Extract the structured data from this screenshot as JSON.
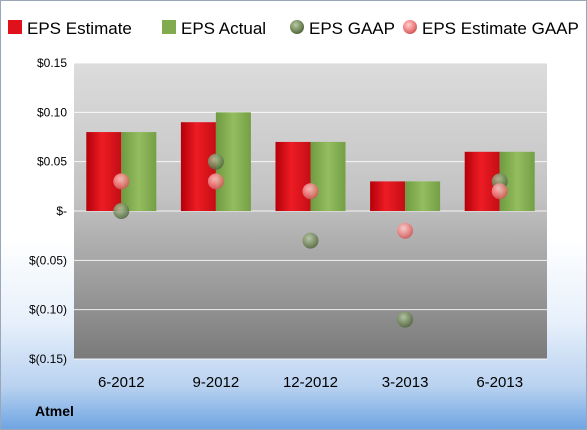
{
  "company": "Atmel",
  "chart_data": {
    "type": "bar",
    "categories": [
      "6-2012",
      "9-2012",
      "12-2012",
      "3-2013",
      "6-2013"
    ],
    "series": [
      {
        "name": "EPS Estimate",
        "kind": "bar",
        "color": "#e0111a",
        "values": [
          0.08,
          0.09,
          0.07,
          0.03,
          0.06
        ]
      },
      {
        "name": "EPS Actual",
        "kind": "bar",
        "color": "#82ab4f",
        "values": [
          0.08,
          0.1,
          0.07,
          0.03,
          0.06
        ]
      },
      {
        "name": "EPS GAAP",
        "kind": "scatter",
        "color": "#6f8a5a",
        "values": [
          0.0,
          0.05,
          -0.03,
          -0.11,
          0.03
        ]
      },
      {
        "name": "EPS Estimate GAAP",
        "kind": "scatter",
        "color": "#f08585",
        "values": [
          0.03,
          0.03,
          0.02,
          -0.02,
          0.02
        ]
      }
    ],
    "ylim": [
      -0.15,
      0.15
    ],
    "yticks": [
      {
        "value": 0.15,
        "label": "$0.15"
      },
      {
        "value": 0.1,
        "label": "$0.10"
      },
      {
        "value": 0.05,
        "label": "$0.05"
      },
      {
        "value": 0.0,
        "label": "$-"
      },
      {
        "value": -0.05,
        "label": "$(0.05)"
      },
      {
        "value": -0.1,
        "label": "$(0.10)"
      },
      {
        "value": -0.15,
        "label": "$(0.15)"
      }
    ],
    "grid": true,
    "legend": "top"
  }
}
